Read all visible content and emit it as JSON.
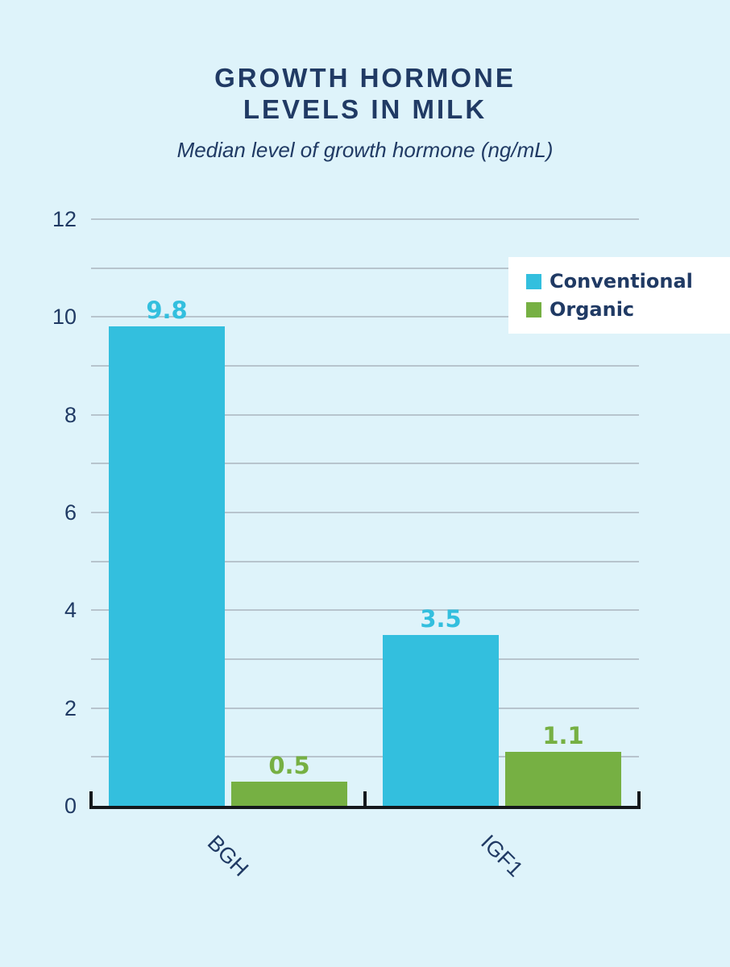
{
  "title": {
    "lines": [
      "GROWTH HORMONE",
      "LEVELS IN MILK"
    ]
  },
  "subtitle": "Median level of growth hormone (ng/mL)",
  "legend": {
    "position": "top-right",
    "items": [
      {
        "label": "Conventional",
        "color": "#33bfde"
      },
      {
        "label": "Organic",
        "color": "#76b043"
      }
    ]
  },
  "chart_data": {
    "type": "bar",
    "title": "GROWTH HORMONE LEVELS IN MILK",
    "subtitle": "Median level of growth hormone (ng/mL)",
    "categories": [
      "BGH",
      "IGF1"
    ],
    "series": [
      {
        "name": "Conventional",
        "color": "#33bfde",
        "values": [
          9.8,
          3.5
        ]
      },
      {
        "name": "Organic",
        "color": "#76b043",
        "values": [
          0.5,
          1.1
        ]
      }
    ],
    "ylim": [
      0,
      12
    ],
    "yticks_labeled": [
      0,
      2,
      4,
      6,
      8,
      10,
      12
    ],
    "grid_interval": 1,
    "grid": true,
    "legend_position": "top-right",
    "xlabel": "",
    "ylabel": ""
  },
  "colors": {
    "background": "#def3fa",
    "text": "#203a64",
    "gridline": "#b7c4cd",
    "axis": "#14181c",
    "legend_background": "#ffffff"
  }
}
